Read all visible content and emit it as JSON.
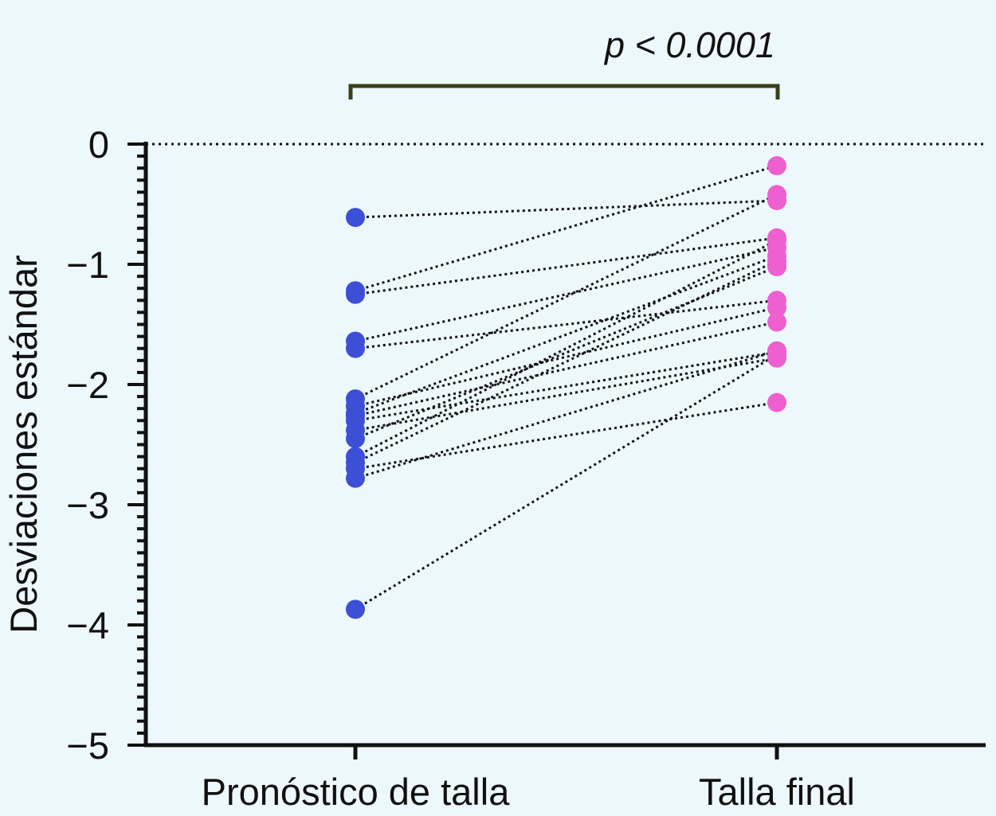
{
  "chart_data": {
    "type": "scatter",
    "title": "",
    "xlabel": "",
    "ylabel": "Desviaciones estándar",
    "ylim": [
      -5,
      0
    ],
    "y_ticks": [
      0,
      -1,
      -2,
      -3,
      -4,
      -5
    ],
    "y_tick_labels": [
      "0",
      "−1",
      "−2",
      "−3",
      "−4",
      "−5"
    ],
    "categories": [
      "Pronóstico de talla",
      "Talla final"
    ],
    "reference_line_y": 0,
    "annotation": "p < 0.0001",
    "colors": {
      "before": "#3d4fd6",
      "after": "#ee5fcf",
      "lines": "#111111"
    },
    "pairs": [
      [
        -0.61,
        -0.47
      ],
      [
        -1.22,
        -0.18
      ],
      [
        -1.25,
        -0.78
      ],
      [
        -1.64,
        -0.86
      ],
      [
        -1.7,
        -1.3
      ],
      [
        -2.12,
        -0.42
      ],
      [
        -2.18,
        -1.36
      ],
      [
        -2.24,
        -0.93
      ],
      [
        -2.26,
        -1.48
      ],
      [
        -2.3,
        -1.73
      ],
      [
        -2.38,
        -1.78
      ],
      [
        -2.45,
        -1.02
      ],
      [
        -2.6,
        -0.8
      ],
      [
        -2.65,
        -0.97
      ],
      [
        -2.7,
        -2.15
      ],
      [
        -2.78,
        -1.72
      ],
      [
        -3.87,
        -1.75
      ]
    ]
  }
}
